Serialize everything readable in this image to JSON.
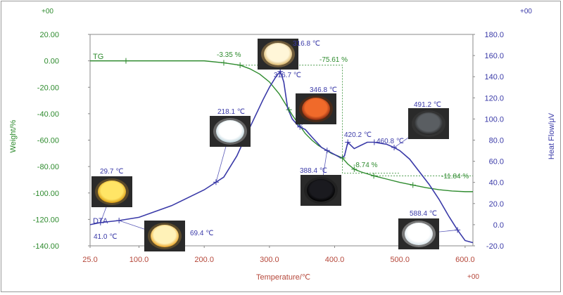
{
  "chart_data": {
    "type": "line",
    "xlabel": "Temperature/℃",
    "ylabel_left": "Weight/%",
    "ylabel_right": "Heat Flow/μV",
    "xlim": [
      25,
      612
    ],
    "ylim_left": [
      -140,
      20
    ],
    "ylim_right": [
      -20,
      180
    ],
    "x_ticks": [
      "25.0",
      "100.0",
      "200.0",
      "300.0",
      "400.0",
      "500.0",
      "600.0"
    ],
    "y_left_ticks": [
      "20.00",
      "0.00",
      "-20.00",
      "-40.00",
      "-60.00",
      "-80.00",
      "-100.00",
      "-120.00",
      "-140.00"
    ],
    "y_right_ticks": [
      "180.0",
      "160.0",
      "140.0",
      "120.0",
      "100.0",
      "80.0",
      "60.0",
      "40.0",
      "20.0",
      "0.0",
      "-20.0"
    ],
    "corner_labels": {
      "top_left": "+00",
      "top_right": "+00",
      "bottom_right": "+00"
    },
    "series": [
      {
        "name": "TG",
        "axis": "left",
        "color": "#2e8b2e",
        "x": [
          25,
          80,
          150,
          200,
          230,
          255,
          270,
          285,
          300,
          315,
          325,
          335,
          345,
          355,
          365,
          375,
          385,
          395,
          405,
          412,
          420,
          430,
          440,
          460,
          480,
          500,
          520,
          540,
          560,
          580,
          600,
          612
        ],
        "y": [
          0,
          0,
          0,
          0,
          -1.5,
          -3.3,
          -6,
          -10,
          -16,
          -25,
          -33,
          -41,
          -48,
          -55,
          -60,
          -64,
          -67,
          -70,
          -72,
          -73.5,
          -78,
          -82,
          -84,
          -87,
          -89.5,
          -92,
          -94,
          -96,
          -97.5,
          -98.5,
          -99,
          -99
        ]
      },
      {
        "name": "DTA",
        "axis": "right",
        "color": "#3a3aa8",
        "x": [
          25,
          41,
          70,
          100,
          150,
          200,
          230,
          250,
          270,
          290,
          300,
          310,
          316.7,
          322,
          328,
          335,
          345,
          355,
          365,
          380,
          395,
          410,
          415,
          420.2,
          425,
          430,
          440,
          450,
          460.8,
          470,
          480,
          491.2,
          500,
          515,
          530,
          545,
          560,
          575,
          588.4,
          600,
          612
        ],
        "y": [
          0,
          2,
          4,
          7,
          18,
          33,
          45,
          65,
          92,
          118,
          130,
          140,
          145,
          135,
          110,
          100,
          93,
          90,
          83,
          73,
          68,
          63,
          65,
          78,
          75,
          72,
          75,
          78,
          78,
          77,
          76,
          73,
          70,
          62,
          50,
          38,
          24,
          8,
          -5,
          -15,
          -17
        ]
      }
    ],
    "markers": [
      {
        "series": "TG",
        "x": [
          80,
          230,
          255,
          330,
          412,
          430,
          460,
          520
        ]
      },
      {
        "series": "DTA",
        "x": [
          41,
          69.4,
          218.1,
          316.7,
          346.8,
          388.4,
          420.2,
          460.8,
          491.2,
          588.4
        ]
      }
    ],
    "annotations": [
      {
        "text": "-3.35 %",
        "color": "green"
      },
      {
        "text": "-75.61 %",
        "color": "green"
      },
      {
        "text": "-8.74 %",
        "color": "green"
      },
      {
        "text": "-11.84 %",
        "color": "green"
      },
      {
        "text": "316.8 ℃",
        "color": "blue"
      },
      {
        "text": "316.7 ℃",
        "color": "blue"
      },
      {
        "text": "346.8 ℃",
        "color": "blue"
      },
      {
        "text": "218.1 ℃",
        "color": "blue"
      },
      {
        "text": "420.2 ℃",
        "color": "blue"
      },
      {
        "text": "460.8 ℃",
        "color": "blue"
      },
      {
        "text": "491.2 ℃",
        "color": "blue"
      },
      {
        "text": "388.4 ℃",
        "color": "blue"
      },
      {
        "text": "29.7 ℃",
        "color": "blue"
      },
      {
        "text": "41.0 ℃",
        "color": "blue"
      },
      {
        "text": "69.4 ℃",
        "color": "blue"
      },
      {
        "text": "588.4 ℃",
        "color": "blue"
      }
    ],
    "sample_photos": [
      {
        "temp": "316.8",
        "rim": "#6d5a3a",
        "core": "#fff6d8",
        "edge": "#d9b56a"
      },
      {
        "temp": "346.8",
        "rim": "#4a2a18",
        "core": "#f06a2a",
        "edge": "#8a2a10"
      },
      {
        "temp": "218.1",
        "rim": "#666",
        "core": "#ffffff",
        "edge": "#bcd4dc"
      },
      {
        "temp": "491.2",
        "rim": "#333",
        "core": "#5a5e62",
        "edge": "#222"
      },
      {
        "temp": "388.4",
        "rim": "#222",
        "core": "#1a1a1f",
        "edge": "#000"
      },
      {
        "temp": "29.7",
        "rim": "#5a4a2a",
        "core": "#ffe566",
        "edge": "#d99a10"
      },
      {
        "temp": "69.4",
        "rim": "#5a4a2a",
        "core": "#fff2b8",
        "edge": "#e8a020"
      },
      {
        "temp": "588.4",
        "rim": "#777",
        "core": "#ffffff",
        "edge": "#d8e4ea"
      }
    ],
    "grid": false,
    "legend": "inline"
  }
}
